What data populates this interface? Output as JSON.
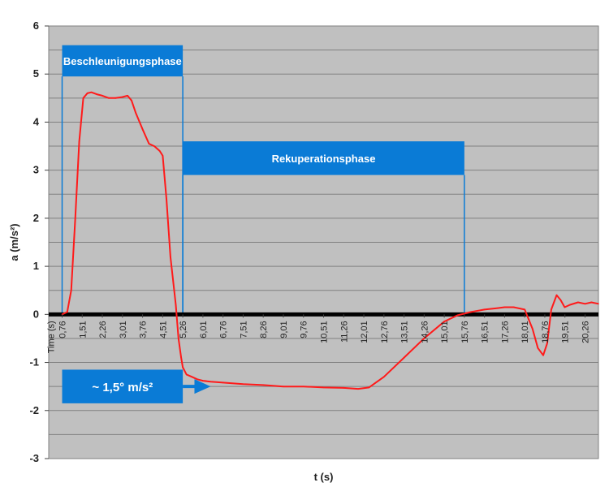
{
  "chart_data": {
    "type": "line",
    "title": "",
    "xlabel": "t (s)",
    "ylabel": "a (m/s²)",
    "x_axis_header": "Time (s)",
    "ylim": [
      -3,
      6
    ],
    "xlim": [
      0.26,
      20.76
    ],
    "yticks": [
      -3,
      -2,
      -1,
      0,
      1,
      2,
      3,
      4,
      5,
      6
    ],
    "xtick_labels": [
      "0,76",
      "1,51",
      "2,26",
      "3,01",
      "3,76",
      "4,51",
      "5,26",
      "6,01",
      "6,76",
      "7,51",
      "8,26",
      "9,01",
      "9,76",
      "10,51",
      "11,26",
      "12,01",
      "12,76",
      "13,51",
      "14,26",
      "15,01",
      "15,76",
      "16,51",
      "17,26",
      "18,01",
      "18,76",
      "19,51",
      "20,26"
    ],
    "xtick_values": [
      0.76,
      1.51,
      2.26,
      3.01,
      3.76,
      4.51,
      5.26,
      6.01,
      6.76,
      7.51,
      8.26,
      9.01,
      9.76,
      10.51,
      11.26,
      12.01,
      12.76,
      13.51,
      14.26,
      15.01,
      15.76,
      16.51,
      17.26,
      18.01,
      18.76,
      19.51,
      20.26
    ],
    "grid": true,
    "background_color": "#c0c0c0",
    "series": [
      {
        "color": "#ff1a1a",
        "x": [
          0.76,
          0.95,
          1.1,
          1.25,
          1.4,
          1.55,
          1.7,
          1.85,
          2.05,
          2.26,
          2.5,
          2.75,
          3.0,
          3.2,
          3.35,
          3.5,
          3.76,
          4.0,
          4.2,
          4.4,
          4.51,
          4.65,
          4.8,
          5.0,
          5.1,
          5.2,
          5.26,
          5.4,
          5.6,
          5.8,
          6.01,
          6.3,
          6.76,
          7.51,
          8.26,
          9.01,
          9.76,
          10.51,
          11.26,
          11.8,
          12.2,
          12.76,
          13.51,
          14.26,
          15.01,
          15.5,
          16.01,
          16.51,
          17.0,
          17.26,
          17.6,
          18.01,
          18.3,
          18.5,
          18.7,
          18.85,
          19.0,
          19.2,
          19.35,
          19.5,
          19.7,
          20.0,
          20.26,
          20.5,
          20.76
        ],
        "y": [
          0.0,
          0.05,
          0.5,
          2.0,
          3.6,
          4.5,
          4.6,
          4.62,
          4.58,
          4.55,
          4.5,
          4.5,
          4.52,
          4.55,
          4.45,
          4.2,
          3.85,
          3.55,
          3.5,
          3.4,
          3.3,
          2.4,
          1.2,
          0.2,
          -0.5,
          -0.9,
          -1.1,
          -1.25,
          -1.3,
          -1.35,
          -1.38,
          -1.4,
          -1.42,
          -1.45,
          -1.47,
          -1.5,
          -1.5,
          -1.52,
          -1.53,
          -1.55,
          -1.52,
          -1.3,
          -0.9,
          -0.5,
          -0.15,
          -0.02,
          0.05,
          0.1,
          0.13,
          0.15,
          0.15,
          0.1,
          -0.3,
          -0.7,
          -0.85,
          -0.6,
          0.1,
          0.4,
          0.3,
          0.15,
          0.2,
          0.25,
          0.22,
          0.25,
          0.22
        ]
      }
    ],
    "annotations": [
      {
        "kind": "band",
        "label": "Beschleunigungsphase",
        "x0": 0.76,
        "x1": 5.26,
        "y_top": 5.6,
        "y_bottom": 4.95
      },
      {
        "kind": "band",
        "label": "Rekuperationsphase",
        "x0": 5.26,
        "x1": 15.76,
        "y_top": 3.6,
        "y_bottom": 2.9
      },
      {
        "kind": "callout",
        "label": "~ 1,5° m/s²",
        "x0": 0.76,
        "x1": 5.26,
        "y_top": -1.15,
        "y_bottom": -1.85,
        "arrow_to_x": 6.3,
        "arrow_y": -1.5
      }
    ],
    "band_color": "#0a7bd6"
  }
}
